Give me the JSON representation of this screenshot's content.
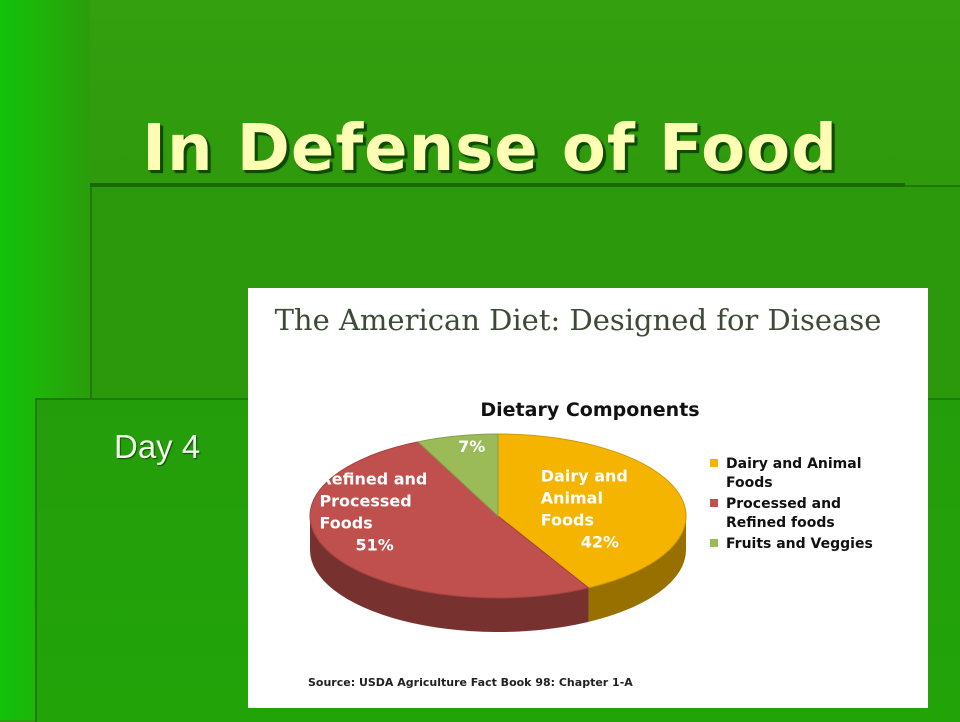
{
  "slide": {
    "title": "In Defense of Food",
    "subtitle": "Day 4"
  },
  "colors": {
    "title_text": "#fdfdb4",
    "background": "#2c980b",
    "dairy": "#f4b400",
    "processed": "#c0504d",
    "fruits": "#9bbb59"
  },
  "chart_data": {
    "type": "pie",
    "image_title": "The American Diet: Designed for Disease",
    "title": "Dietary Components",
    "source": "Source: USDA Agriculture Fact Book 98: Chapter 1-A",
    "slices": [
      {
        "name": "Dairy and Animal Foods",
        "value": 42,
        "label_lines": [
          "Dairy and",
          "Animal",
          "Foods",
          "42%"
        ],
        "legend_lines": [
          "Dairy and Animal",
          "Foods"
        ],
        "color": "#f4b400"
      },
      {
        "name": "Processed and Refined foods",
        "value": 51,
        "label_lines": [
          "Refined and",
          "Processed",
          "Foods",
          "51%"
        ],
        "legend_lines": [
          "Processed and",
          "Refined foods"
        ],
        "color": "#c0504d"
      },
      {
        "name": "Fruits and Veggies",
        "value": 7,
        "label_lines": [
          "7%"
        ],
        "legend_lines": [
          "Fruits and Veggies"
        ],
        "color": "#9bbb59"
      }
    ],
    "legend_position": "right",
    "style": "3d-pie"
  }
}
